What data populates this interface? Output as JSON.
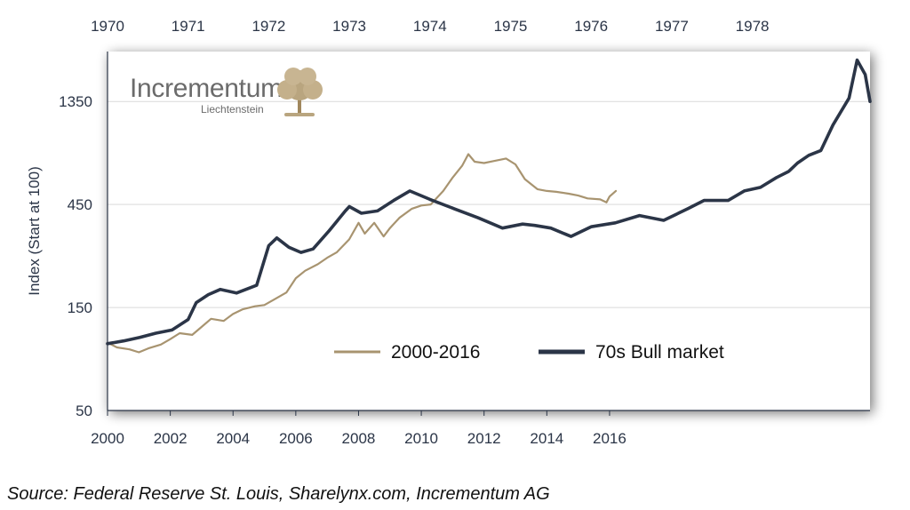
{
  "source": "Source: Federal Reserve St. Louis, Sharelynx.com, Incrementum AG",
  "brand": {
    "name": "Incrementum",
    "sub": "Liechtenstein"
  },
  "colors": {
    "series_2000s": "#a89470",
    "series_70s": "#2b3547",
    "grid": "#d9d9d9",
    "axis": "#2b3547"
  },
  "chart_data": {
    "type": "line",
    "ylabel": "Index (Start at 100)",
    "yscale": "log",
    "ylim": [
      50,
      2300
    ],
    "yticks": [
      50,
      150,
      450,
      1350
    ],
    "xlabel_bottom": "",
    "xlim_bottom": [
      2000,
      2024.3
    ],
    "xticks_bottom": [
      "2000",
      "2002",
      "2004",
      "2006",
      "2008",
      "2010",
      "2012",
      "2014",
      "2016"
    ],
    "xlim_top": [
      1970,
      1979.46
    ],
    "xticks_top": [
      "1970",
      "1971",
      "1972",
      "1973",
      "1974",
      "1975",
      "1976",
      "1977",
      "1978"
    ],
    "grid": true,
    "legend_position": "center-bottom",
    "series": [
      {
        "name": "2000-2016",
        "axis": "bottom",
        "x": [
          2000.0,
          2000.3,
          2000.7,
          2001.0,
          2001.3,
          2001.7,
          2002.0,
          2002.3,
          2002.7,
          2003.0,
          2003.3,
          2003.7,
          2004.0,
          2004.3,
          2004.7,
          2005.0,
          2005.3,
          2005.7,
          2006.0,
          2006.3,
          2006.7,
          2007.0,
          2007.3,
          2007.7,
          2008.0,
          2008.2,
          2008.5,
          2008.8,
          2009.0,
          2009.3,
          2009.7,
          2010.0,
          2010.3,
          2010.7,
          2011.0,
          2011.3,
          2011.5,
          2011.7,
          2012.0,
          2012.3,
          2012.7,
          2013.0,
          2013.3,
          2013.7,
          2014.0,
          2014.3,
          2014.7,
          2015.0,
          2015.3,
          2015.7,
          2015.9,
          2016.0,
          2016.2
        ],
        "y": [
          103,
          98,
          96,
          93,
          97,
          101,
          107,
          114,
          112,
          122,
          133,
          130,
          140,
          147,
          152,
          154,
          163,
          176,
          205,
          222,
          238,
          255,
          270,
          310,
          370,
          330,
          370,
          320,
          350,
          390,
          430,
          445,
          450,
          520,
          600,
          680,
          770,
          710,
          700,
          715,
          735,
          690,
          590,
          530,
          520,
          515,
          505,
          495,
          480,
          475,
          460,
          490,
          520
        ]
      },
      {
        "name": "70s Bull market",
        "axis": "top",
        "x": [
          1970.0,
          1970.2,
          1970.4,
          1970.6,
          1970.8,
          1971.0,
          1971.1,
          1971.25,
          1971.4,
          1971.6,
          1971.85,
          1972.0,
          1972.1,
          1972.25,
          1972.4,
          1972.55,
          1972.75,
          1972.95,
          1973.0,
          1973.15,
          1973.35,
          1973.55,
          1973.75,
          1974.0,
          1974.3,
          1974.6,
          1974.9,
          1975.15,
          1975.3,
          1975.5,
          1975.75,
          1976.0,
          1976.3,
          1976.6,
          1976.9,
          1977.2,
          1977.4,
          1977.7,
          1977.9,
          1978.1,
          1978.3,
          1978.45,
          1978.56,
          1978.7,
          1978.85,
          1979.0,
          1979.2,
          1979.3,
          1979.4,
          1979.46
        ],
        "y": [
          102,
          105,
          109,
          114,
          118,
          132,
          158,
          172,
          182,
          175,
          190,
          290,
          315,
          285,
          270,
          280,
          340,
          420,
          440,
          410,
          420,
          470,
          520,
          475,
          430,
          390,
          350,
          365,
          360,
          350,
          320,
          355,
          370,
          400,
          380,
          430,
          470,
          470,
          520,
          540,
          600,
          640,
          700,
          760,
          800,
          1050,
          1400,
          2100,
          1800,
          1350
        ]
      }
    ]
  }
}
